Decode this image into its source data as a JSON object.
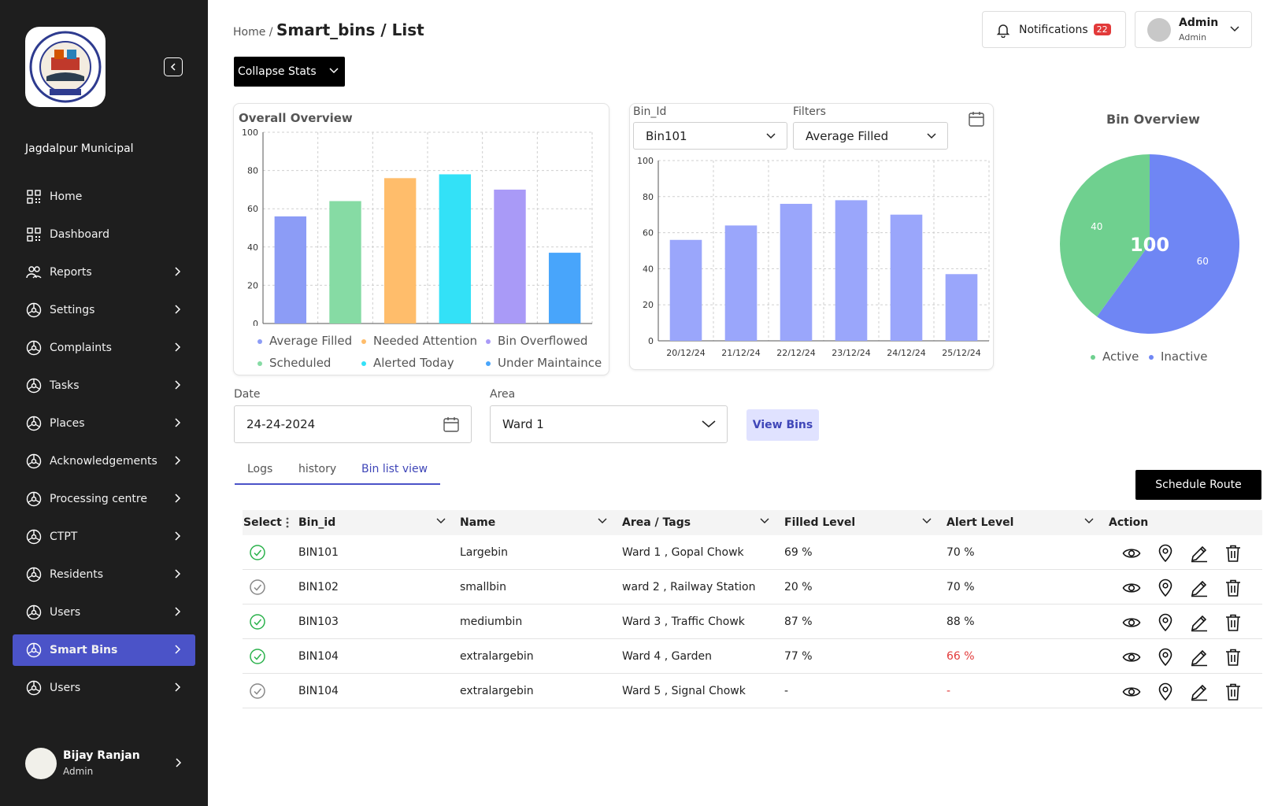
{
  "sidebar": {
    "org_name": "Jagdalpur Municipal",
    "logo_text": "सेवा आपके द्वार",
    "items": [
      {
        "label": "Home",
        "icon": "grid-icon"
      },
      {
        "label": "Dashboard",
        "icon": "grid-icon"
      },
      {
        "label": "Reports",
        "icon": "users-icon"
      },
      {
        "label": "Settings",
        "icon": "nodes-icon"
      },
      {
        "label": "Complaints",
        "icon": "nodes-icon"
      },
      {
        "label": "Tasks",
        "icon": "nodes-icon"
      },
      {
        "label": "Places",
        "icon": "nodes-icon"
      },
      {
        "label": "Acknowledgements",
        "icon": "nodes-icon"
      },
      {
        "label": "Processing centre",
        "icon": "nodes-icon"
      },
      {
        "label": "CTPT",
        "icon": "nodes-icon"
      },
      {
        "label": "Residents",
        "icon": "nodes-icon"
      },
      {
        "label": "Users",
        "icon": "nodes-icon"
      },
      {
        "label": "Smart Bins",
        "icon": "nodes-icon",
        "active": true
      },
      {
        "label": "Users",
        "icon": "nodes-icon"
      }
    ],
    "user": {
      "name": "Bijay Ranjan",
      "role": "Admin"
    }
  },
  "header": {
    "breadcrumb_home": "Home /",
    "breadcrumb_current": "Smart_bins / List",
    "notifications_label": "Notifications",
    "notifications_count": "22",
    "admin_name": "Admin",
    "admin_role": "Admin",
    "collapse_label": "Collapse Stats"
  },
  "filters": {
    "bin_id_label": "Bin_Id",
    "bin_id_value": "Bin101",
    "filters_label": "Filters",
    "filters_value": "Average Filled",
    "date_label": "Date",
    "date_value": "24-24-2024",
    "area_label": "Area",
    "area_value": "Ward 1",
    "view_bins": "View Bins"
  },
  "tabs": [
    "Logs",
    "history",
    "Bin list view"
  ],
  "schedule_route": "Schedule Route",
  "table": {
    "headers": [
      "Select",
      "Bin_id",
      "Name",
      "Area / Tags",
      "Filled Level",
      "Alert Level",
      "Action"
    ],
    "rows": [
      {
        "selected": true,
        "bin_id": "BIN101",
        "name": "Largebin",
        "area": "Ward 1 , Gopal Chowk",
        "filled": "69 %",
        "alert": "70 %",
        "alert_red": false
      },
      {
        "selected": false,
        "bin_id": "BIN102",
        "name": "smallbin",
        "area": "ward 2 , Railway Station",
        "filled": "20 %",
        "alert": "70 %",
        "alert_red": false
      },
      {
        "selected": true,
        "bin_id": "BIN103",
        "name": "mediumbin",
        "area": "Ward 3 , Traffic Chowk",
        "filled": "87 %",
        "alert": "88 %",
        "alert_red": false
      },
      {
        "selected": true,
        "bin_id": "BIN104",
        "name": "extralargebin",
        "area": "Ward 4 , Garden",
        "filled": "77 %",
        "alert": "66 %",
        "alert_red": true
      },
      {
        "selected": false,
        "bin_id": "BIN104",
        "name": "extralargebin",
        "area": "Ward 5 , Signal Chowk",
        "filled": "-",
        "alert": "-",
        "alert_red": true
      }
    ]
  },
  "colors": {
    "accent": "#4b53c8",
    "green_check": "#2bb24c",
    "alert_red": "#e23a3a"
  },
  "chart_data": [
    {
      "type": "bar",
      "title": "Overall Overview",
      "categories": [
        "Average Filled",
        "Needed Attention",
        "Alerted Today",
        "Bin Overflowed",
        "Scheduled",
        "Under Maintaince"
      ],
      "values": [
        56,
        64,
        76,
        78,
        70,
        37
      ],
      "colors": [
        "#8c9cf6",
        "#86dba4",
        "#ffbd6b",
        "#33e1f7",
        "#a99af7",
        "#48a5fb"
      ],
      "legend": [
        "Average Filled",
        "Needed Attention",
        "Bin Overflowed",
        "Scheduled",
        "Alerted Today",
        "Under Maintaince"
      ],
      "legend_colors": [
        "#8c9cf6",
        "#ffbd6b",
        "#a99af7",
        "#86dba4",
        "#33e1f7",
        "#48a5fb"
      ],
      "yticks": [
        0,
        20,
        40,
        60,
        80,
        100
      ],
      "ylim": [
        0,
        100
      ],
      "grid": true
    },
    {
      "type": "bar",
      "categories": [
        "20/12/24",
        "21/12/24",
        "22/12/24",
        "23/12/24",
        "24/12/24",
        "25/12/24"
      ],
      "values": [
        56,
        64,
        76,
        78,
        70,
        37
      ],
      "color": "#9aa6fb",
      "yticks": [
        0,
        20,
        40,
        60,
        80,
        100
      ],
      "ylim": [
        0,
        100
      ],
      "grid": true
    },
    {
      "type": "pie",
      "title": "Bin Overview",
      "center_label": "100",
      "slices": [
        {
          "name": "Active",
          "value": 40,
          "color": "#6fd08f"
        },
        {
          "name": "Inactive",
          "value": 60,
          "color": "#6f86f4"
        }
      ],
      "legend_position": "bottom"
    }
  ]
}
